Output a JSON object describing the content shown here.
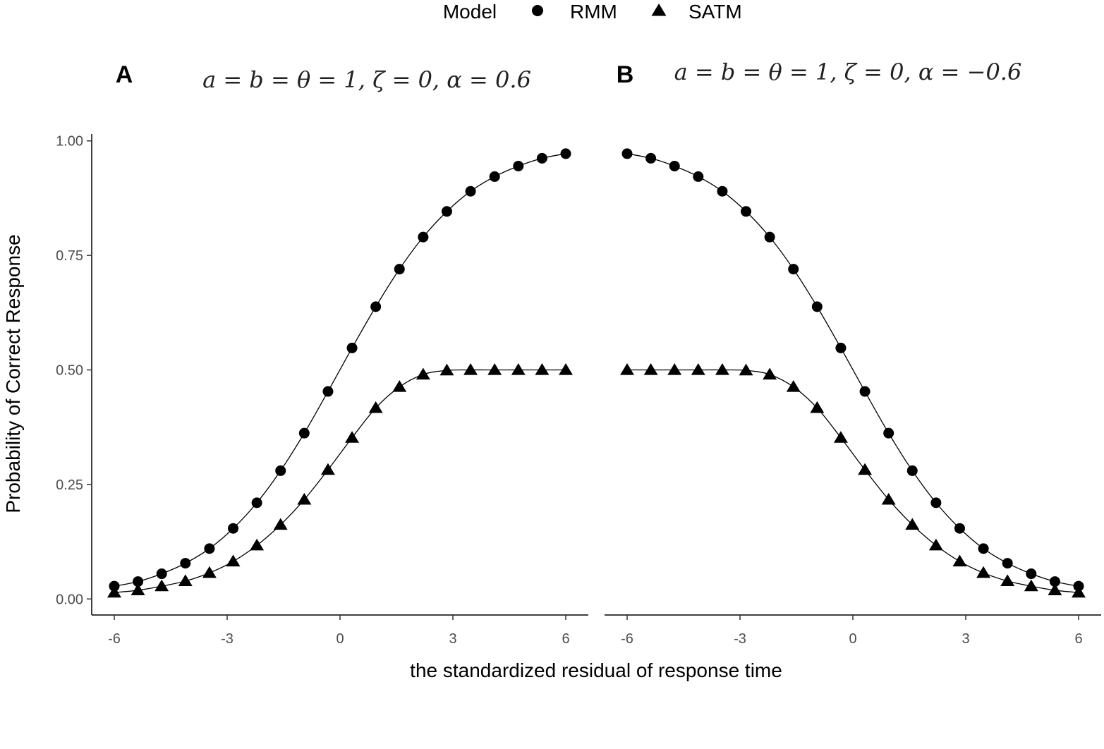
{
  "chart_data": {
    "type": "line",
    "legend": {
      "title": "Model",
      "placement": "top",
      "entries": [
        {
          "name": "RMM",
          "marker": "circle"
        },
        {
          "name": "SATM",
          "marker": "triangle"
        }
      ]
    },
    "xlabel": "the standardized residual of response time",
    "ylabel": "Probability of Correct Response",
    "xlim": [
      -6.6,
      6.6
    ],
    "ylim": [
      -0.035,
      1.015
    ],
    "xticks": [
      "-6",
      "-3",
      "0",
      "3",
      "6"
    ],
    "yticks": [
      "0.00",
      "0.25",
      "0.50",
      "0.75",
      "1.00"
    ],
    "grid": false,
    "x": [
      -6.0,
      -5.37,
      -4.74,
      -4.11,
      -3.47,
      -2.84,
      -2.21,
      -1.58,
      -0.95,
      -0.32,
      0.32,
      0.95,
      1.58,
      2.21,
      2.84,
      3.47,
      4.11,
      4.74,
      5.37,
      6.0
    ],
    "panels": [
      {
        "label": "A",
        "subtitle": "a = b = θ = 1, ζ = 0, α = 0.6",
        "series": [
          {
            "name": "RMM",
            "values": [
              0.028,
              0.038,
              0.055,
              0.078,
              0.11,
              0.154,
              0.21,
              0.28,
              0.362,
              0.453,
              0.548,
              0.638,
              0.72,
              0.79,
              0.846,
              0.89,
              0.922,
              0.945,
              0.962,
              0.972
            ]
          },
          {
            "name": "SATM",
            "values": [
              0.014,
              0.019,
              0.028,
              0.039,
              0.057,
              0.082,
              0.117,
              0.162,
              0.217,
              0.282,
              0.352,
              0.417,
              0.463,
              0.49,
              0.499,
              0.5,
              0.5,
              0.5,
              0.5,
              0.5
            ]
          }
        ]
      },
      {
        "label": "B",
        "subtitle": "a = b = θ = 1, ζ = 0, α = −0.6",
        "series": [
          {
            "name": "RMM",
            "values": [
              0.972,
              0.962,
              0.945,
              0.922,
              0.89,
              0.846,
              0.79,
              0.72,
              0.638,
              0.548,
              0.453,
              0.362,
              0.28,
              0.21,
              0.154,
              0.11,
              0.078,
              0.055,
              0.038,
              0.028
            ]
          },
          {
            "name": "SATM",
            "values": [
              0.5,
              0.5,
              0.5,
              0.5,
              0.5,
              0.499,
              0.49,
              0.463,
              0.417,
              0.352,
              0.282,
              0.217,
              0.162,
              0.117,
              0.082,
              0.057,
              0.039,
              0.028,
              0.019,
              0.014
            ]
          }
        ]
      }
    ]
  }
}
